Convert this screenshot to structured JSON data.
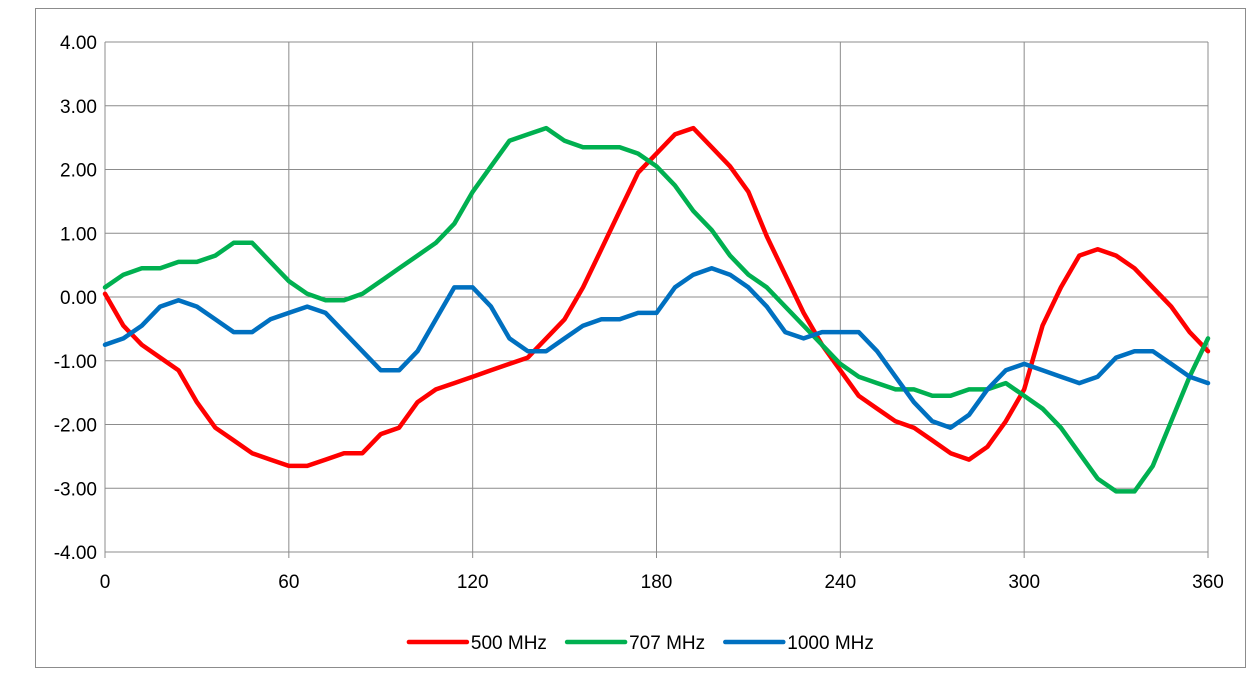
{
  "chart_data": {
    "type": "line",
    "title": "",
    "xlabel": "",
    "ylabel": "",
    "xlim": [
      0,
      360
    ],
    "ylim": [
      -4,
      4
    ],
    "x_ticks": [
      0,
      60,
      120,
      180,
      240,
      300,
      360
    ],
    "x_tick_labels": [
      "0",
      "60",
      "120",
      "180",
      "240",
      "300",
      "360"
    ],
    "y_ticks": [
      4,
      3,
      2,
      1,
      0,
      -1,
      -2,
      -3,
      -4
    ],
    "y_tick_labels": [
      "4.00",
      "3.00",
      "2.00",
      "1.00",
      "0.00",
      "-1.00",
      "-2.00",
      "-3.00",
      "-4.00"
    ],
    "grid": true,
    "legend_position": "bottom",
    "x": [
      0,
      6,
      12,
      18,
      24,
      30,
      36,
      42,
      48,
      54,
      60,
      66,
      72,
      78,
      84,
      90,
      96,
      102,
      108,
      114,
      120,
      126,
      132,
      138,
      144,
      150,
      156,
      162,
      168,
      174,
      180,
      186,
      192,
      198,
      204,
      210,
      216,
      222,
      228,
      234,
      240,
      246,
      252,
      258,
      264,
      270,
      276,
      282,
      288,
      294,
      300,
      306,
      312,
      318,
      324,
      330,
      336,
      342,
      348,
      354,
      360
    ],
    "series": [
      {
        "name": "500 MHz",
        "color": "#ff0000",
        "values": [
          0.05,
          -0.45,
          -0.75,
          -0.95,
          -1.15,
          -1.65,
          -2.05,
          -2.25,
          -2.45,
          -2.55,
          -2.65,
          -2.65,
          -2.55,
          -2.45,
          -2.45,
          -2.15,
          -2.05,
          -1.65,
          -1.45,
          -1.35,
          -1.25,
          -1.15,
          -1.05,
          -0.95,
          -0.65,
          -0.35,
          0.15,
          0.75,
          1.35,
          1.95,
          2.25,
          2.55,
          2.65,
          2.35,
          2.05,
          1.65,
          0.95,
          0.35,
          -0.25,
          -0.75,
          -1.15,
          -1.55,
          -1.75,
          -1.95,
          -2.05,
          -2.25,
          -2.45,
          -2.55,
          -2.35,
          -1.95,
          -1.45,
          -0.45,
          0.15,
          0.65,
          0.75,
          0.65,
          0.45,
          0.15,
          -0.15,
          -0.55,
          -0.85
        ]
      },
      {
        "name": "707 MHz",
        "color": "#00b050",
        "values": [
          0.15,
          0.35,
          0.45,
          0.45,
          0.55,
          0.55,
          0.65,
          0.85,
          0.85,
          0.55,
          0.25,
          0.05,
          -0.05,
          -0.05,
          0.05,
          0.25,
          0.45,
          0.65,
          0.85,
          1.15,
          1.65,
          2.05,
          2.45,
          2.55,
          2.65,
          2.45,
          2.35,
          2.35,
          2.35,
          2.25,
          2.05,
          1.75,
          1.35,
          1.05,
          0.65,
          0.35,
          0.15,
          -0.15,
          -0.45,
          -0.75,
          -1.05,
          -1.25,
          -1.35,
          -1.45,
          -1.45,
          -1.55,
          -1.55,
          -1.45,
          -1.45,
          -1.35,
          -1.55,
          -1.75,
          -2.05,
          -2.45,
          -2.85,
          -3.05,
          -3.05,
          -2.65,
          -1.95,
          -1.25,
          -0.65
        ]
      },
      {
        "name": "1000 MHz",
        "color": "#0070c0",
        "values": [
          -0.75,
          -0.65,
          -0.45,
          -0.15,
          -0.05,
          -0.15,
          -0.35,
          -0.55,
          -0.55,
          -0.35,
          -0.25,
          -0.15,
          -0.25,
          -0.55,
          -0.85,
          -1.15,
          -1.15,
          -0.85,
          -0.35,
          0.15,
          0.15,
          -0.15,
          -0.65,
          -0.85,
          -0.85,
          -0.65,
          -0.45,
          -0.35,
          -0.35,
          -0.25,
          -0.25,
          0.15,
          0.35,
          0.45,
          0.35,
          0.15,
          -0.15,
          -0.55,
          -0.65,
          -0.55,
          -0.55,
          -0.55,
          -0.85,
          -1.25,
          -1.65,
          -1.95,
          -2.05,
          -1.85,
          -1.45,
          -1.15,
          -1.05,
          -1.15,
          -1.25,
          -1.35,
          -1.25,
          -0.95,
          -0.85,
          -0.85,
          -1.05,
          -1.25,
          -1.35
        ]
      }
    ]
  }
}
